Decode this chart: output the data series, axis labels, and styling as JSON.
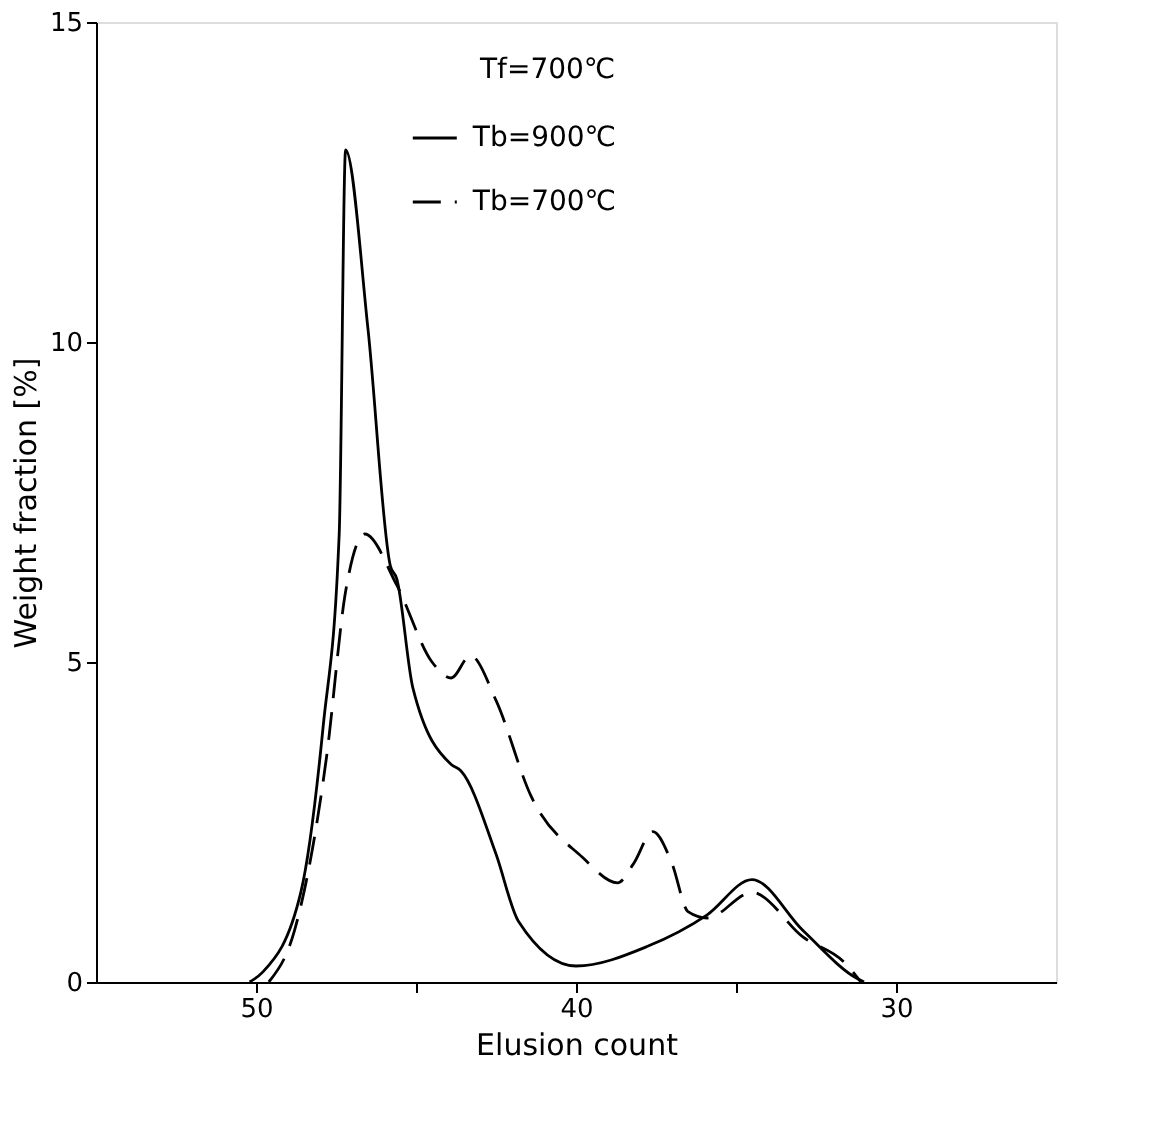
{
  "chart_data": {
    "type": "line",
    "xlabel": "Elusion count",
    "ylabel": "Weight fraction [%]",
    "annotations": [
      "Tf=700℃"
    ],
    "xlim": [
      55,
      25
    ],
    "ylim": [
      0,
      15
    ],
    "xticks": [
      50,
      {
        "value": 45,
        "label": null
      },
      40,
      {
        "value": 35,
        "label": null
      },
      30
    ],
    "yticks": [
      0,
      5,
      10,
      15
    ],
    "grid": false,
    "legend": "top",
    "series": [
      {
        "name": "Tb=900℃",
        "color": "#000000",
        "line_style": "solid",
        "x": [
          50.2,
          49.8,
          48.6,
          47.9,
          47.4,
          47.2,
          46.5,
          45.8,
          45.6,
          45.1,
          43.9,
          43.6,
          42.5,
          41.8,
          40.0,
          37.8,
          35.9,
          34.5,
          32.9,
          31.2,
          31.0
        ],
        "values": [
          0,
          0.15,
          1.4,
          4.0,
          7.0,
          13.0,
          10.2,
          6.5,
          6.3,
          4.6,
          3.4,
          3.3,
          2.0,
          0.95,
          0.25,
          0.55,
          1.05,
          1.6,
          0.8,
          0.05,
          0
        ]
      },
      {
        "name": "Tb=700℃",
        "color": "#000000",
        "line_style": "dashed",
        "x": [
          49.6,
          48.8,
          47.8,
          47.2,
          46.6,
          45.6,
          44.5,
          43.9,
          43.3,
          42.5,
          41.4,
          39.8,
          38.7,
          38.2,
          37.6,
          37.0,
          36.5,
          35.9,
          34.5,
          32.9,
          31.6,
          31.1
        ],
        "values": [
          0,
          0.8,
          3.5,
          6.1,
          7.0,
          6.2,
          5.0,
          4.75,
          5.1,
          4.4,
          2.9,
          1.95,
          1.55,
          1.85,
          2.35,
          1.85,
          1.1,
          1.0,
          1.4,
          0.7,
          0.3,
          0
        ]
      }
    ]
  }
}
